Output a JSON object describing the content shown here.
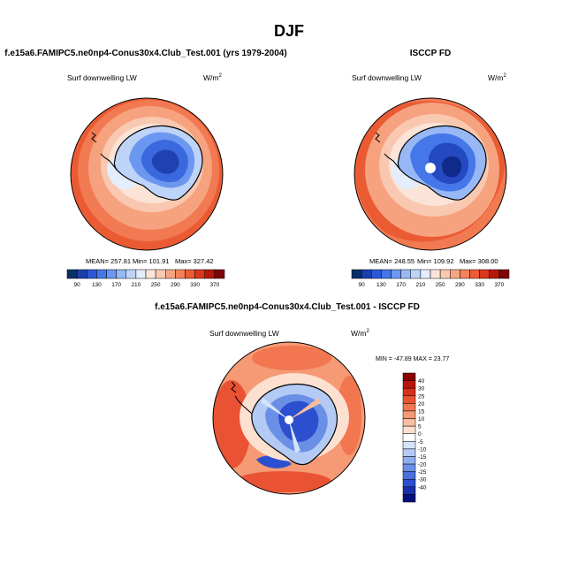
{
  "page_title": "DJF",
  "chart_data": [
    {
      "type": "contour-map",
      "projection": "south-polar-stereographic",
      "title": "f.e15a6.FAMIPC5.ne0np4-Conus30x4.Club_Test.001 (yrs 1979-2004)",
      "variable": "Surf downwelling LW",
      "units": "W/m",
      "units_exponent": "2",
      "stats": {
        "mean": "MEAN= 257.81",
        "min": "Min= 101.91",
        "max": "Max= 327.42"
      },
      "colorbar": {
        "orientation": "horizontal",
        "levels": [
          90,
          110,
          130,
          150,
          170,
          190,
          210,
          230,
          250,
          270,
          290,
          310,
          330,
          350,
          370
        ],
        "tick_labels": [
          "90",
          "130",
          "170",
          "210",
          "250",
          "290",
          "330",
          "370"
        ],
        "colors": [
          "#08306b",
          "#1c3fb0",
          "#2b59d6",
          "#4577e8",
          "#6b97f0",
          "#97b8f5",
          "#bed3f8",
          "#e4edfb",
          "#fbe4d8",
          "#f9c8b0",
          "#f6a583",
          "#f3825c",
          "#ec5c36",
          "#d8381c",
          "#b4180c",
          "#7e0405"
        ]
      }
    },
    {
      "type": "contour-map",
      "projection": "south-polar-stereographic",
      "title": "ISCCP FD",
      "variable": "Surf downwelling LW",
      "units": "W/m",
      "units_exponent": "2",
      "stats": {
        "mean": "MEAN= 248.55",
        "min": "Min= 109.92",
        "max": "Max= 308.00"
      },
      "colorbar": {
        "orientation": "horizontal",
        "levels": [
          90,
          110,
          130,
          150,
          170,
          190,
          210,
          230,
          250,
          270,
          290,
          310,
          330,
          350,
          370
        ],
        "tick_labels": [
          "90",
          "130",
          "170",
          "210",
          "250",
          "290",
          "330",
          "370"
        ],
        "colors": [
          "#08306b",
          "#1c3fb0",
          "#2b59d6",
          "#4577e8",
          "#6b97f0",
          "#97b8f5",
          "#bed3f8",
          "#e4edfb",
          "#fbe4d8",
          "#f9c8b0",
          "#f6a583",
          "#f3825c",
          "#ec5c36",
          "#d8381c",
          "#b4180c",
          "#7e0405"
        ]
      }
    },
    {
      "type": "contour-map",
      "projection": "south-polar-stereographic",
      "title": "f.e15a6.FAMIPC5.ne0np4-Conus30x4.Club_Test.001 - ISCCP FD",
      "variable": "Surf downwelling LW",
      "units": "W/m",
      "units_exponent": "2",
      "stats": {
        "minmax": "MIN = -47.89  MAX = 23.77"
      },
      "colorbar": {
        "orientation": "vertical",
        "levels": [
          40,
          30,
          25,
          20,
          15,
          10,
          5,
          0,
          -5,
          -10,
          -15,
          -20,
          -25,
          -30,
          -40
        ],
        "tick_labels": [
          "40",
          "30",
          "25",
          "20",
          "15",
          "10",
          "5",
          "0",
          "-5",
          "-10",
          "-15",
          "-20",
          "-25",
          "-30",
          "-40"
        ],
        "colors": [
          "#8b0000",
          "#b8150b",
          "#d6301b",
          "#ea5234",
          "#f27650",
          "#f59a74",
          "#f9bd9f",
          "#fde0cf",
          "#ffffff",
          "#d6e3fa",
          "#b3caf4",
          "#8eaeee",
          "#6a8fe6",
          "#4a70dc",
          "#2b4fcf",
          "#1a2fa8",
          "#06107a"
        ]
      }
    }
  ]
}
